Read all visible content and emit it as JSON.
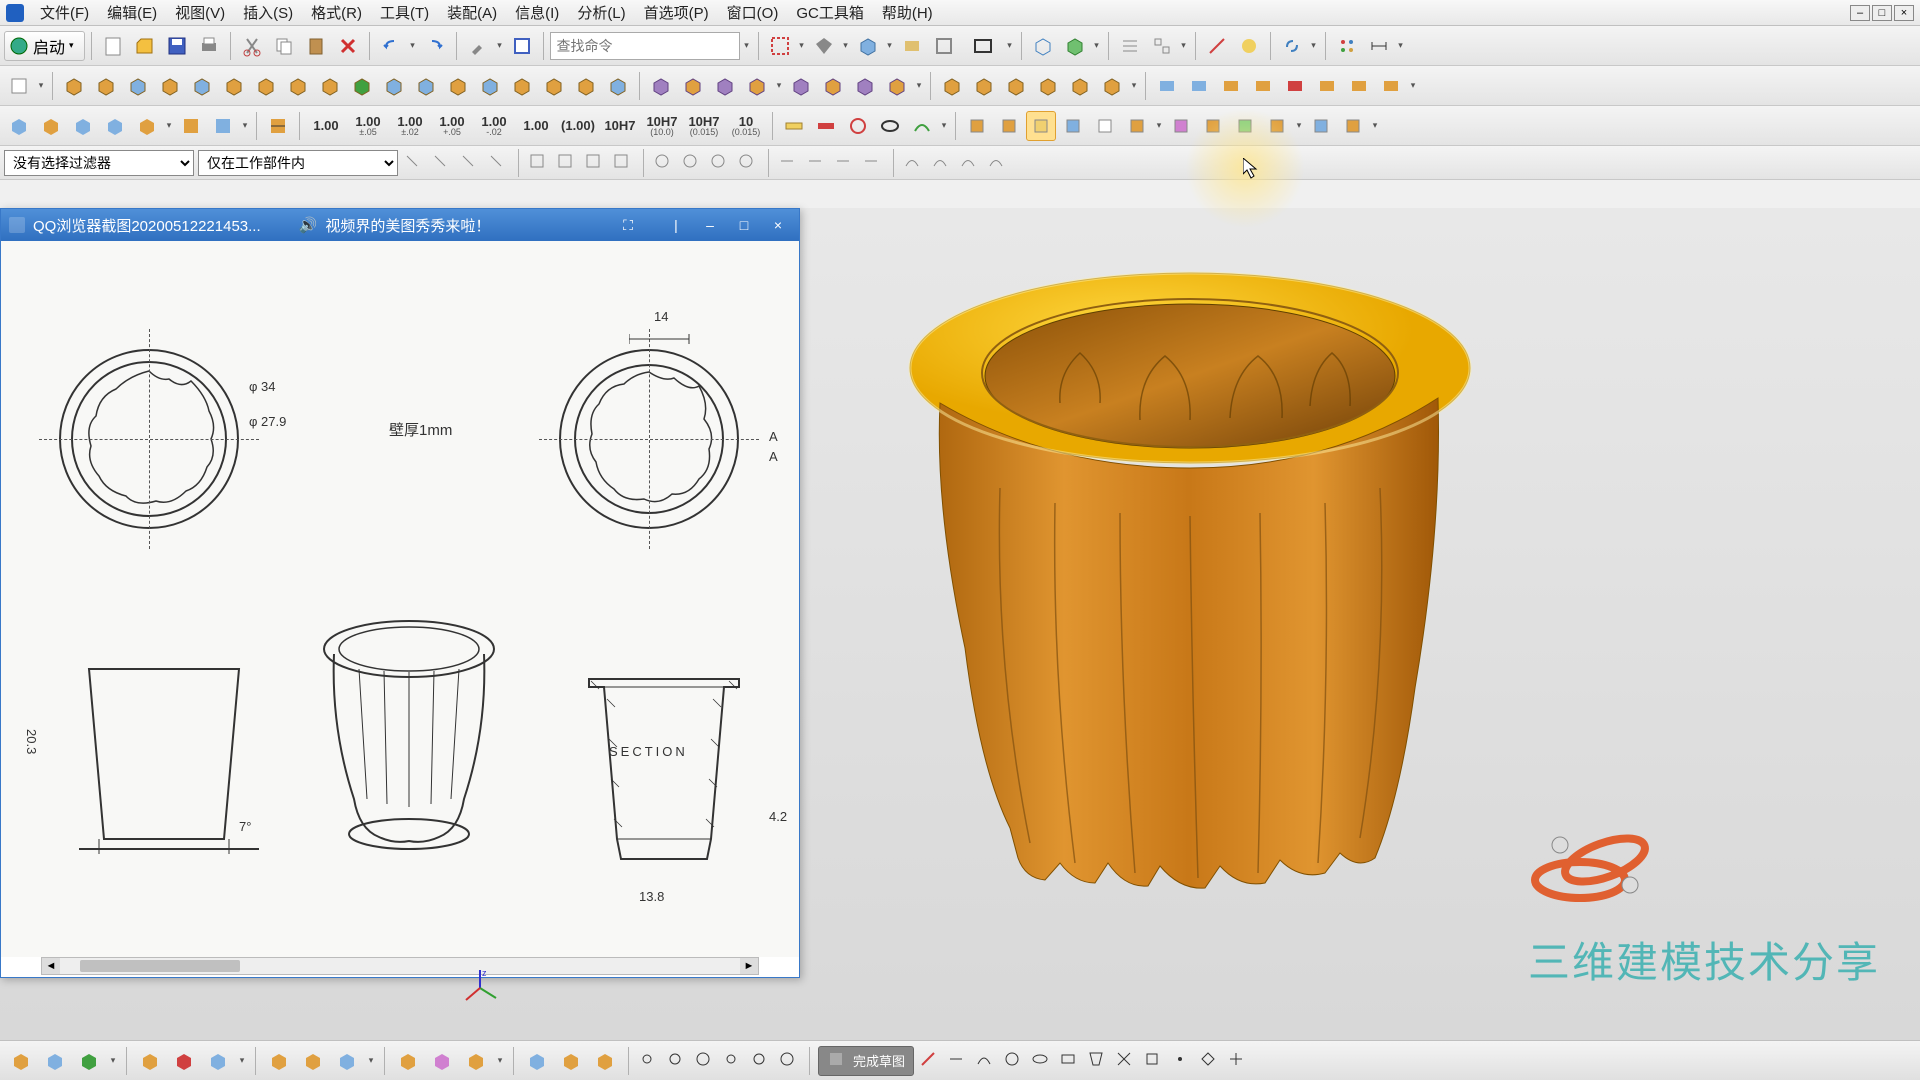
{
  "menu": {
    "items": [
      "文件(F)",
      "编辑(E)",
      "视图(V)",
      "插入(S)",
      "格式(R)",
      "工具(T)",
      "装配(A)",
      "信息(I)",
      "分析(L)",
      "首选项(P)",
      "窗口(O)",
      "GC工具箱",
      "帮助(H)"
    ]
  },
  "toolbar1": {
    "start_label": "启动",
    "search_placeholder": "查找命令"
  },
  "toolbar3": {
    "tol_values": [
      {
        "top": "1.00",
        "sub": ""
      },
      {
        "top": "1.00",
        "sub": "±.05"
      },
      {
        "top": "1.00",
        "sub": "±.02"
      },
      {
        "top": "1.00",
        "sub": "+.05"
      },
      {
        "top": "1.00",
        "sub": "-.02"
      },
      {
        "top": "1.00",
        "sub": ""
      },
      {
        "top": "(1.00)",
        "sub": ""
      },
      {
        "top": "10H7",
        "sub": ""
      },
      {
        "top": "10H7",
        "sub": "(10.0)"
      },
      {
        "top": "10H7",
        "sub": "(0.015)"
      },
      {
        "top": "10",
        "sub": "(0.015)"
      }
    ]
  },
  "filters": {
    "select1": "没有选择过滤器",
    "select2": "仅在工作部件内"
  },
  "ref_window": {
    "title": "QQ浏览器截图20200512221453...",
    "subtitle": "视频界的美图秀秀来啦！",
    "note": "壁厚1mm",
    "section_label": "SECTION",
    "dims": {
      "d1": "14",
      "d2": "φ 34",
      "d3": "φ 27.9",
      "d4": "20.3",
      "d5": "13.8",
      "d6": "4.2",
      "d7": "A",
      "angle": "7°"
    }
  },
  "bottom": {
    "status": "完成草图"
  },
  "watermark": "三维建模技术分享",
  "colors": {
    "model_rim": "#f5b800",
    "model_body": "#d68a1a",
    "model_shadow": "#a86810",
    "bg": "#e4e4e4"
  }
}
